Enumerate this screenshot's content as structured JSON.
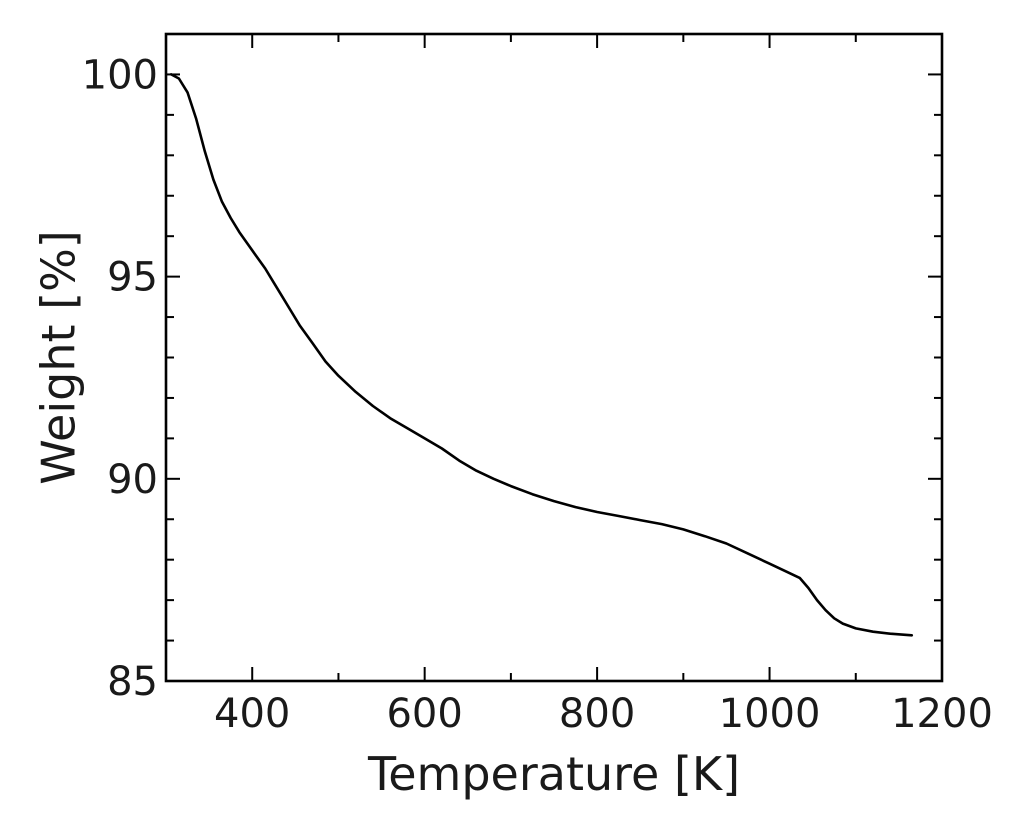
{
  "chart_data": {
    "type": "line",
    "title": "",
    "xlabel": "Temperature [K]",
    "ylabel": "Weight [%]",
    "xlim": [
      300,
      1200
    ],
    "ylim": [
      85,
      101
    ],
    "xticks": [
      400,
      600,
      800,
      1000,
      1200
    ],
    "yticks": [
      85,
      90,
      95,
      100
    ],
    "xtick_labels": [
      "400",
      "600",
      "800",
      "1000",
      "1200"
    ],
    "ytick_labels": [
      "85",
      "90",
      "95",
      "100"
    ],
    "x_minor_step": 100,
    "y_minor_step": 1,
    "grid": false,
    "legend": "none",
    "line_color": "#000000",
    "series": [
      {
        "x": [
          306,
          315,
          325,
          335,
          345,
          355,
          365,
          375,
          385,
          395,
          405,
          415,
          425,
          435,
          445,
          455,
          470,
          485,
          500,
          520,
          540,
          560,
          580,
          600,
          620,
          640,
          660,
          680,
          700,
          725,
          750,
          775,
          800,
          825,
          850,
          875,
          900,
          925,
          950,
          975,
          1000,
          1020,
          1035,
          1045,
          1055,
          1065,
          1075,
          1085,
          1100,
          1120,
          1140,
          1165
        ],
        "y": [
          100.0,
          99.9,
          99.55,
          98.9,
          98.1,
          97.4,
          96.85,
          96.45,
          96.1,
          95.8,
          95.5,
          95.2,
          94.85,
          94.5,
          94.15,
          93.8,
          93.35,
          92.9,
          92.55,
          92.15,
          91.8,
          91.5,
          91.25,
          91.0,
          90.75,
          90.45,
          90.2,
          90.0,
          89.82,
          89.62,
          89.45,
          89.3,
          89.18,
          89.08,
          88.98,
          88.88,
          88.75,
          88.58,
          88.4,
          88.15,
          87.9,
          87.7,
          87.55,
          87.3,
          87.0,
          86.75,
          86.55,
          86.42,
          86.3,
          86.22,
          86.17,
          86.13
        ]
      }
    ]
  }
}
